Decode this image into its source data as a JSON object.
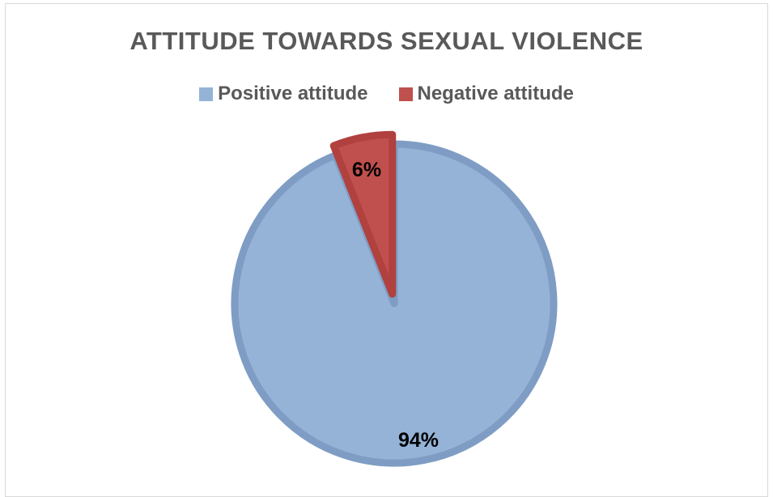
{
  "chart_data": {
    "type": "pie",
    "title": "ATTITUDE TOWARDS SEXUAL VIOLENCE",
    "categories": [
      "Positive attitude",
      "Negative attitude"
    ],
    "values": [
      94,
      6
    ],
    "data_labels": [
      "94%",
      "6%"
    ],
    "colors": [
      "#95b3d7",
      "#c0504d"
    ],
    "border_colors": [
      "#7f9dc4",
      "#b0413e"
    ],
    "legend_position": "top",
    "exploded_slice": "Negative attitude"
  }
}
